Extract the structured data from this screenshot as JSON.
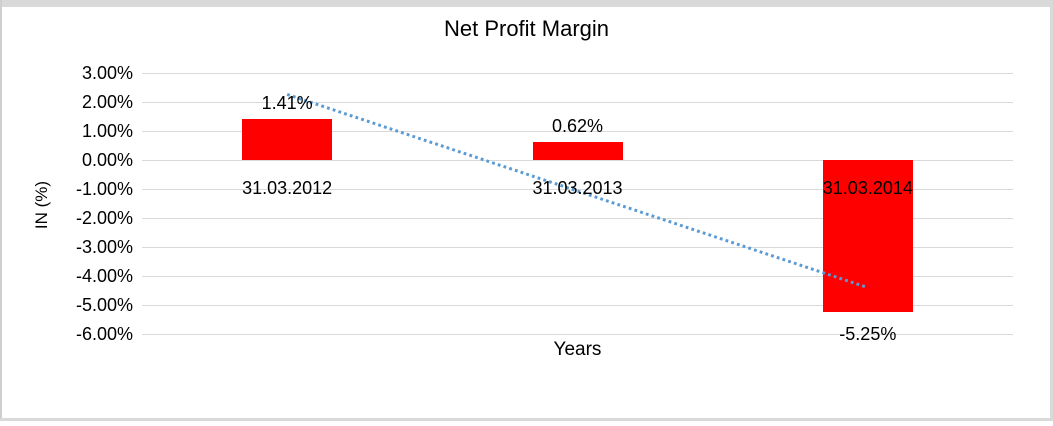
{
  "window": {
    "background": "#FFFFFF",
    "border_color": "#D9D9D9"
  },
  "chart_data": {
    "type": "bar",
    "title": "Net Profit Margin",
    "xlabel": "Years",
    "ylabel": "IN (%)",
    "categories": [
      "31.03.2012",
      "31.03.2013",
      "31.03.2014"
    ],
    "values": [
      1.41,
      0.62,
      -5.25
    ],
    "data_labels": [
      "1.41%",
      "0.62%",
      "-5.25%"
    ],
    "y_ticks": [
      "3.00%",
      "2.00%",
      "1.00%",
      "0.00%",
      "-1.00%",
      "-2.00%",
      "-3.00%",
      "-4.00%",
      "-5.00%",
      "-6.00%"
    ],
    "ylim": [
      -6,
      3
    ],
    "y_tick_step": 1,
    "grid": true,
    "grid_color": "#D9D9D9",
    "legend": false,
    "bar_color": "#FF0000",
    "text_color": "#000000",
    "trendline": {
      "type": "linear",
      "style": "dotted",
      "color": "#5B9BD5",
      "start_value": 2.26,
      "end_value": -4.4
    }
  }
}
